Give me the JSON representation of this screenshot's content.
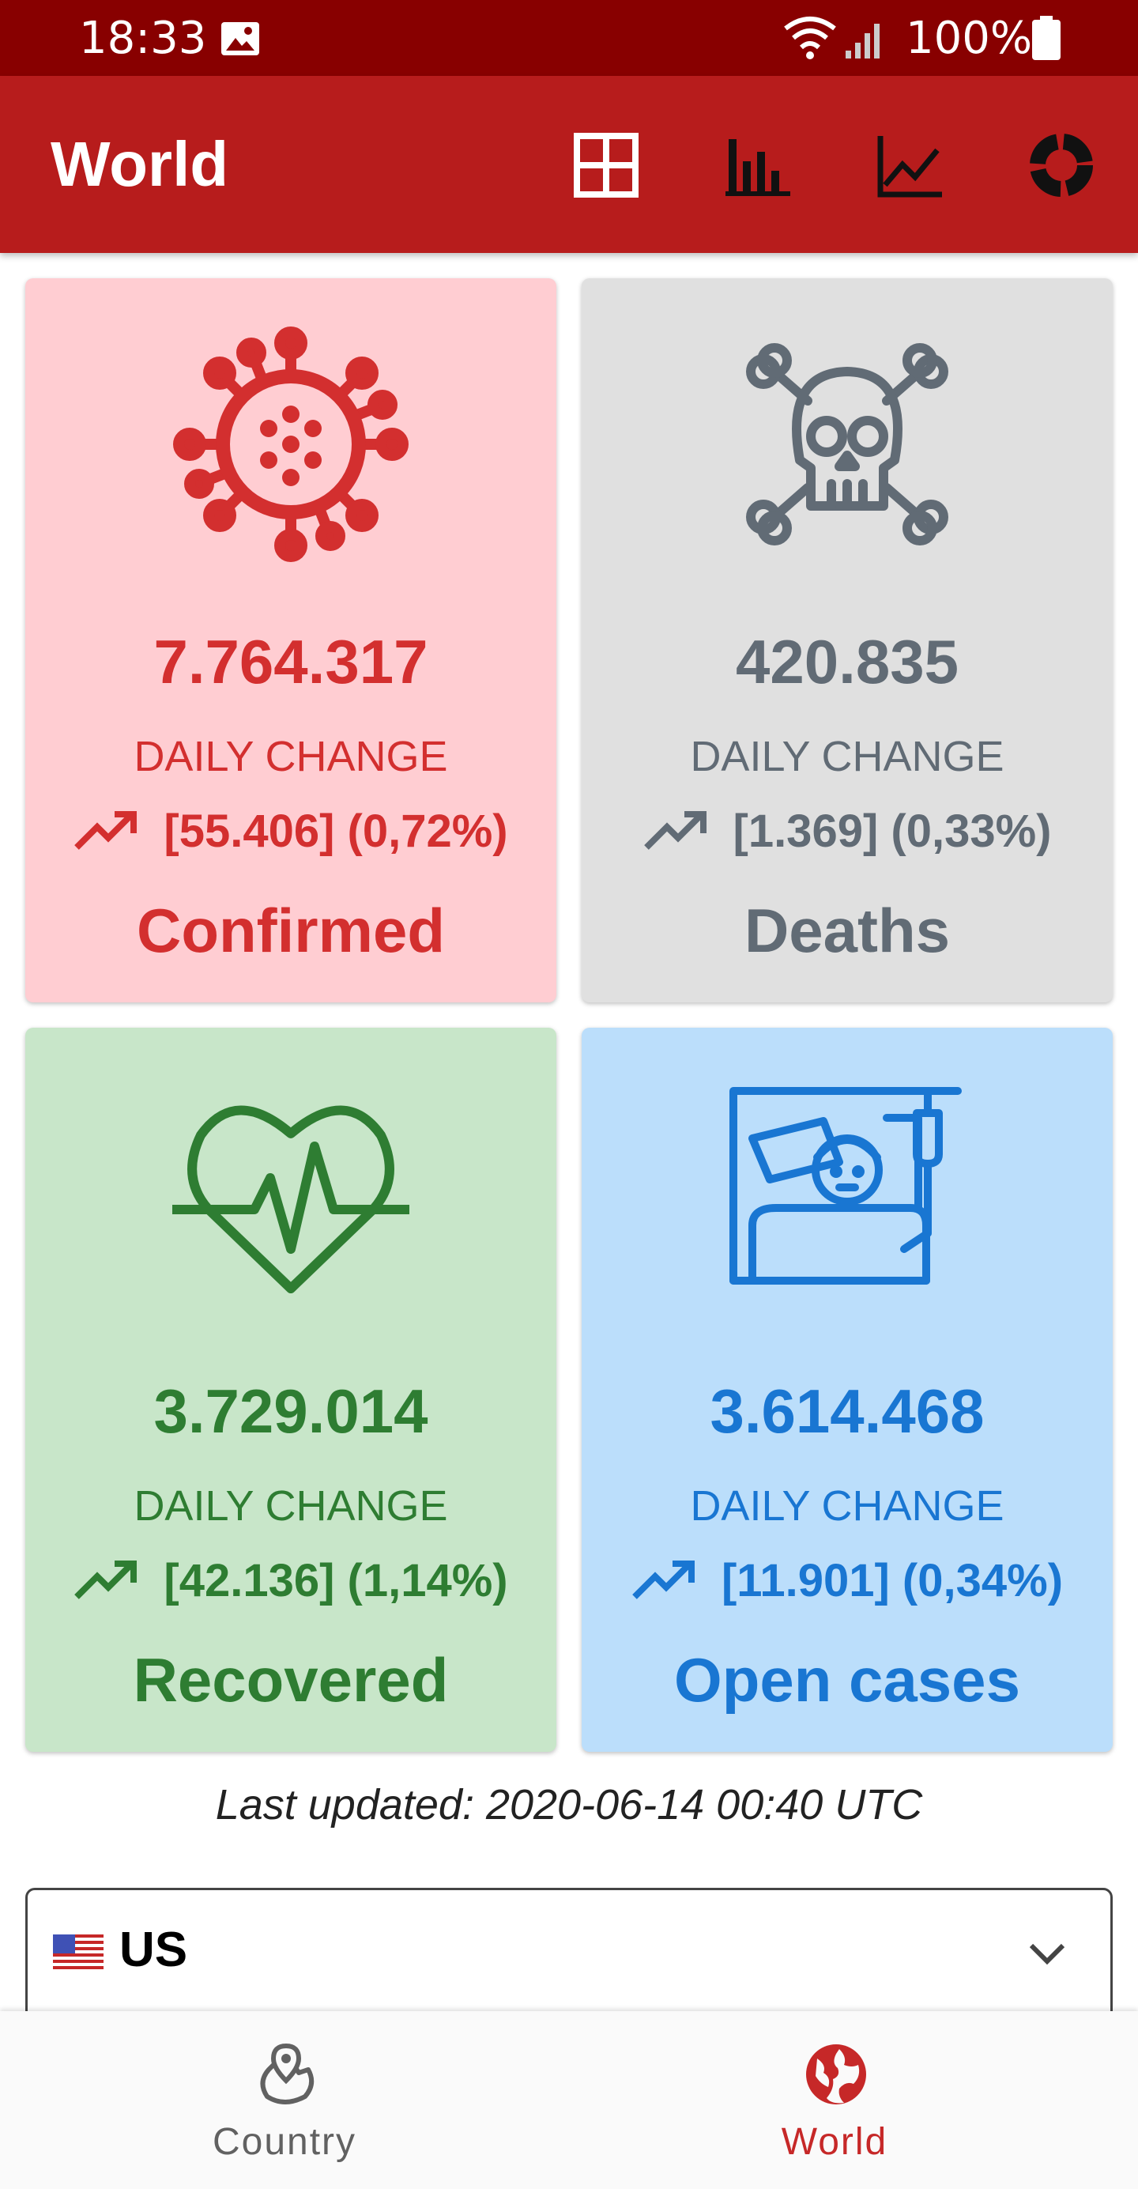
{
  "status_bar": {
    "time": "18:33",
    "battery": "100%"
  },
  "app_bar": {
    "title": "World",
    "icons": [
      "grid-icon",
      "bar-chart-icon",
      "line-chart-icon",
      "donut-chart-icon"
    ]
  },
  "cards": [
    {
      "id": "confirmed",
      "value": "7.764.317",
      "daily_label": "DAILY CHANGE",
      "change": "[55.406] (0,72%)",
      "label": "Confirmed",
      "bg": "#ffcdd2",
      "fg": "#d32f2f",
      "icon": "virus-icon"
    },
    {
      "id": "deaths",
      "value": "420.835",
      "daily_label": "DAILY CHANGE",
      "change": "[1.369] (0,33%)",
      "label": "Deaths",
      "bg": "#e0e0e0",
      "fg": "#616b75",
      "icon": "skull-icon"
    },
    {
      "id": "recovered",
      "value": "3.729.014",
      "daily_label": "DAILY CHANGE",
      "change": "[42.136] (1,14%)",
      "label": "Recovered",
      "bg": "#c8e6c9",
      "fg": "#2e7d32",
      "icon": "heartbeat-icon"
    },
    {
      "id": "open-cases",
      "value": "3.614.468",
      "daily_label": "DAILY CHANGE",
      "change": "[11.901] (0,34%)",
      "label": "Open cases",
      "bg": "#bbdefb",
      "fg": "#1976d2",
      "icon": "hospital-bed-icon"
    }
  ],
  "last_updated": "Last updated: 2020-06-14 00:40 UTC",
  "country_select": {
    "selected": "US"
  },
  "bottom_nav": {
    "items": [
      {
        "label": "Country",
        "icon": "map-pin-icon",
        "active": false
      },
      {
        "label": "World",
        "icon": "globe-icon",
        "active": true
      }
    ],
    "active_color": "#c62828",
    "inactive_color": "#616161"
  }
}
